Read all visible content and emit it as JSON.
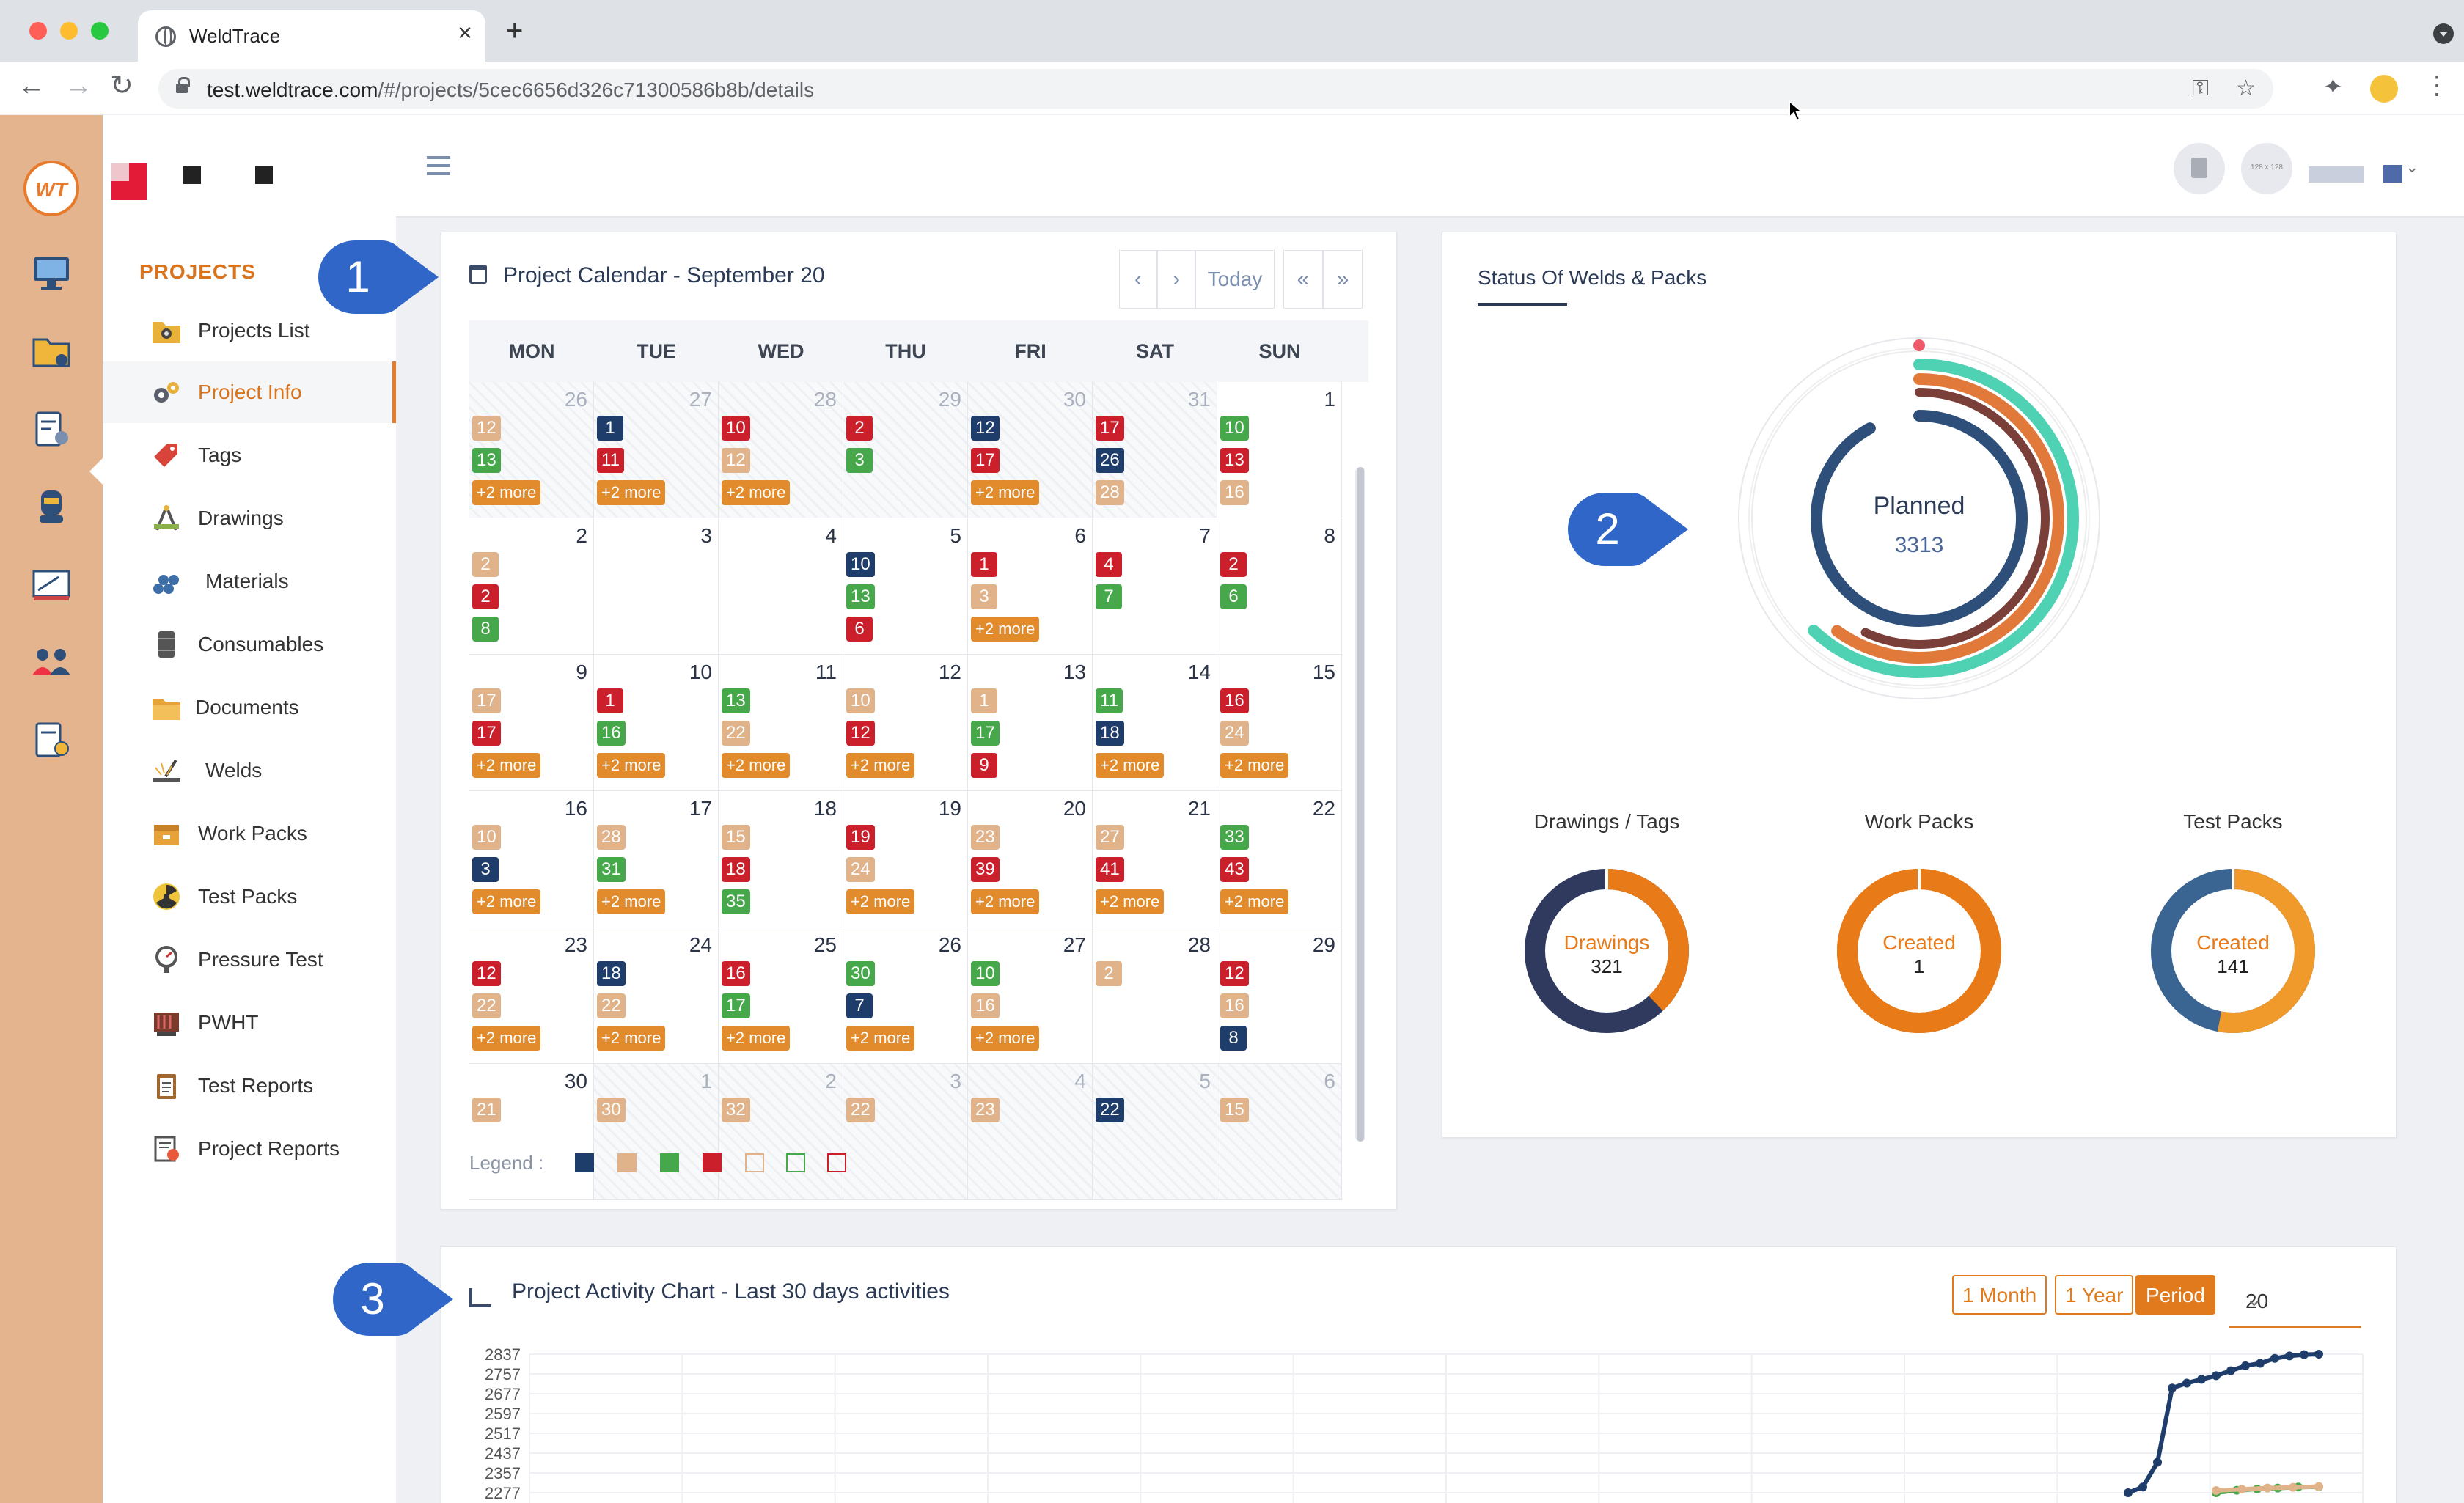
{
  "browser": {
    "tab_title": "WeldTrace",
    "url_host": "test.weldtrace.com",
    "url_path": "/#/projects/5cec6656d326c71300586b8b/details"
  },
  "app": {
    "logo_text": "WT",
    "avatar_placeholder": "128 x 128"
  },
  "sidebar": {
    "heading": "PROJECTS",
    "items": [
      {
        "label": "Projects List",
        "icon": "folder-camera-icon"
      },
      {
        "label": "Project Info",
        "icon": "gears-icon",
        "active": true
      },
      {
        "label": "Tags",
        "icon": "tag-icon"
      },
      {
        "label": "Drawings",
        "icon": "compass-icon"
      },
      {
        "label": "Materials",
        "icon": "pipes-icon"
      },
      {
        "label": "Consumables",
        "icon": "barrel-icon"
      },
      {
        "label": "Documents",
        "icon": "folder-icon"
      },
      {
        "label": "Welds",
        "icon": "welding-icon"
      },
      {
        "label": "Work Packs",
        "icon": "box-icon"
      },
      {
        "label": "Test Packs",
        "icon": "radiation-icon"
      },
      {
        "label": "Pressure Test",
        "icon": "gauge-icon"
      },
      {
        "label": "PWHT",
        "icon": "heater-icon"
      },
      {
        "label": "Test Reports",
        "icon": "clipboard-icon"
      },
      {
        "label": "Project Reports",
        "icon": "report-icon"
      }
    ]
  },
  "calendar": {
    "title": "Project Calendar - September 20",
    "prev": "‹",
    "next": "›",
    "today": "Today",
    "prev_year": "«",
    "next_year": "»",
    "days": [
      "MON",
      "TUE",
      "WED",
      "THU",
      "FRI",
      "SAT",
      "SUN"
    ],
    "more_label": "+2 more",
    "legend_label": "Legend :",
    "colors": {
      "navy": "#1f3d6b",
      "tan": "#e0b38a",
      "green": "#46a84a",
      "red": "#cc1f2c"
    },
    "weeks": [
      [
        {
          "n": "26",
          "o": 1,
          "e": [
            [
              "12",
              "tan"
            ],
            [
              "13",
              "green"
            ]
          ],
          "m": 1
        },
        {
          "n": "27",
          "o": 1,
          "e": [
            [
              "1",
              "navy"
            ],
            [
              "11",
              "red"
            ]
          ],
          "m": 1
        },
        {
          "n": "28",
          "o": 1,
          "e": [
            [
              "10",
              "red"
            ],
            [
              "12",
              "tan"
            ]
          ],
          "m": 1
        },
        {
          "n": "29",
          "o": 1,
          "e": [
            [
              "2",
              "red"
            ],
            [
              "3",
              "green"
            ]
          ],
          "m": 0
        },
        {
          "n": "30",
          "o": 1,
          "e": [
            [
              "12",
              "navy"
            ],
            [
              "17",
              "red"
            ]
          ],
          "m": 1
        },
        {
          "n": "31",
          "o": 1,
          "e": [
            [
              "17",
              "red"
            ],
            [
              "26",
              "navy"
            ],
            [
              "28",
              "tan"
            ]
          ],
          "m": 0
        },
        {
          "n": "1",
          "o": 0,
          "e": [
            [
              "10",
              "green"
            ],
            [
              "13",
              "red"
            ],
            [
              "16",
              "tan"
            ]
          ],
          "m": 0
        }
      ],
      [
        {
          "n": "2",
          "o": 0,
          "e": [
            [
              "2",
              "tan"
            ],
            [
              "2",
              "red"
            ],
            [
              "8",
              "green"
            ]
          ],
          "m": 0
        },
        {
          "n": "3",
          "o": 0,
          "e": [],
          "m": 0
        },
        {
          "n": "4",
          "o": 0,
          "e": [],
          "m": 0
        },
        {
          "n": "5",
          "o": 0,
          "e": [
            [
              "10",
              "navy"
            ],
            [
              "13",
              "green"
            ],
            [
              "6",
              "red"
            ]
          ],
          "m": 0
        },
        {
          "n": "6",
          "o": 0,
          "e": [
            [
              "1",
              "red"
            ],
            [
              "3",
              "tan"
            ]
          ],
          "m": 1
        },
        {
          "n": "7",
          "o": 0,
          "e": [
            [
              "4",
              "red"
            ],
            [
              "7",
              "green"
            ]
          ],
          "m": 0
        },
        {
          "n": "8",
          "o": 0,
          "e": [
            [
              "2",
              "red"
            ],
            [
              "6",
              "green"
            ]
          ],
          "m": 0
        }
      ],
      [
        {
          "n": "9",
          "o": 0,
          "e": [
            [
              "17",
              "tan"
            ],
            [
              "17",
              "red"
            ]
          ],
          "m": 1
        },
        {
          "n": "10",
          "o": 0,
          "e": [
            [
              "1",
              "red"
            ],
            [
              "16",
              "green"
            ]
          ],
          "m": 1
        },
        {
          "n": "11",
          "o": 0,
          "e": [
            [
              "13",
              "green"
            ],
            [
              "22",
              "tan"
            ]
          ],
          "m": 1
        },
        {
          "n": "12",
          "o": 0,
          "e": [
            [
              "10",
              "tan"
            ],
            [
              "12",
              "red"
            ]
          ],
          "m": 1
        },
        {
          "n": "13",
          "o": 0,
          "e": [
            [
              "1",
              "tan"
            ],
            [
              "17",
              "green"
            ],
            [
              "9",
              "red"
            ]
          ],
          "m": 0
        },
        {
          "n": "14",
          "o": 0,
          "e": [
            [
              "11",
              "green"
            ],
            [
              "18",
              "navy"
            ]
          ],
          "m": 1
        },
        {
          "n": "15",
          "o": 0,
          "e": [
            [
              "16",
              "red"
            ],
            [
              "24",
              "tan"
            ]
          ],
          "m": 1
        }
      ],
      [
        {
          "n": "16",
          "o": 0,
          "e": [
            [
              "10",
              "tan"
            ],
            [
              "3",
              "navy"
            ]
          ],
          "m": 1
        },
        {
          "n": "17",
          "o": 0,
          "e": [
            [
              "28",
              "tan"
            ],
            [
              "31",
              "green"
            ]
          ],
          "m": 1
        },
        {
          "n": "18",
          "o": 0,
          "e": [
            [
              "15",
              "tan"
            ],
            [
              "18",
              "red"
            ],
            [
              "35",
              "green"
            ]
          ],
          "m": 0
        },
        {
          "n": "19",
          "o": 0,
          "e": [
            [
              "19",
              "red"
            ],
            [
              "24",
              "tan"
            ]
          ],
          "m": 1
        },
        {
          "n": "20",
          "o": 0,
          "e": [
            [
              "23",
              "tan"
            ],
            [
              "39",
              "red"
            ]
          ],
          "m": 1
        },
        {
          "n": "21",
          "o": 0,
          "e": [
            [
              "27",
              "tan"
            ],
            [
              "41",
              "red"
            ]
          ],
          "m": 1
        },
        {
          "n": "22",
          "o": 0,
          "e": [
            [
              "33",
              "green"
            ],
            [
              "43",
              "red"
            ]
          ],
          "m": 1
        }
      ],
      [
        {
          "n": "23",
          "o": 0,
          "e": [
            [
              "12",
              "red"
            ],
            [
              "22",
              "tan"
            ]
          ],
          "m": 1
        },
        {
          "n": "24",
          "o": 0,
          "e": [
            [
              "18",
              "navy"
            ],
            [
              "22",
              "tan"
            ]
          ],
          "m": 1
        },
        {
          "n": "25",
          "o": 0,
          "e": [
            [
              "16",
              "red"
            ],
            [
              "17",
              "green"
            ]
          ],
          "m": 1
        },
        {
          "n": "26",
          "o": 0,
          "e": [
            [
              "30",
              "green"
            ],
            [
              "7",
              "navy"
            ]
          ],
          "m": 1
        },
        {
          "n": "27",
          "o": 0,
          "e": [
            [
              "10",
              "green"
            ],
            [
              "16",
              "tan"
            ]
          ],
          "m": 1
        },
        {
          "n": "28",
          "o": 0,
          "e": [
            [
              "2",
              "tan"
            ]
          ],
          "m": 0
        },
        {
          "n": "29",
          "o": 0,
          "e": [
            [
              "12",
              "red"
            ],
            [
              "16",
              "tan"
            ],
            [
              "8",
              "navy"
            ]
          ],
          "m": 0
        }
      ],
      [
        {
          "n": "30",
          "o": 0,
          "e": [
            [
              "21",
              "tan"
            ]
          ],
          "m": 0
        },
        {
          "n": "1",
          "o": 1,
          "e": [
            [
              "30",
              "tan"
            ]
          ],
          "m": 0
        },
        {
          "n": "2",
          "o": 1,
          "e": [
            [
              "32",
              "tan"
            ]
          ],
          "m": 0
        },
        {
          "n": "3",
          "o": 1,
          "e": [
            [
              "22",
              "tan"
            ]
          ],
          "m": 0
        },
        {
          "n": "4",
          "o": 1,
          "e": [
            [
              "23",
              "tan"
            ]
          ],
          "m": 0
        },
        {
          "n": "5",
          "o": 1,
          "e": [
            [
              "22",
              "navy"
            ]
          ],
          "m": 0
        },
        {
          "n": "6",
          "o": 1,
          "e": [
            [
              "15",
              "tan"
            ]
          ],
          "m": 0
        }
      ]
    ]
  },
  "status": {
    "title": "Status Of Welds & Packs",
    "center_label": "Planned",
    "center_value": "3313",
    "rings": [
      {
        "color": "#4fd1b4",
        "fraction": 0.62
      },
      {
        "color": "#e0793a",
        "fraction": 0.6
      },
      {
        "color": "#7b3f3a",
        "fraction": 0.57
      },
      {
        "color": "#2d4f7a",
        "fraction": 0.92
      }
    ],
    "donuts": [
      {
        "heading": "Drawings / Tags",
        "label": "Drawings",
        "value": "321",
        "main": "#2f3a5e",
        "accent": "#e87a17",
        "accent_fraction": 0.38
      },
      {
        "heading": "Work Packs",
        "label": "Created",
        "value": "1",
        "main": "#e87a17",
        "accent": "#e87a17",
        "accent_fraction": 1.0
      },
      {
        "heading": "Test Packs",
        "label": "Created",
        "value": "141",
        "main": "#3a6491",
        "accent": "#f09a2c",
        "accent_fraction": 0.53
      }
    ]
  },
  "activity": {
    "title": "Project Activity Chart - Last 30 days activities",
    "buttons": [
      "1 Month",
      "1 Year",
      "Period"
    ],
    "active_button": "Period",
    "period_value": "20",
    "chevron": "⌄"
  },
  "chart_data": {
    "type": "line",
    "title": "Project Activity Chart - Last 30 days activities",
    "yticks": [
      "2837",
      "2757",
      "2677",
      "2597",
      "2517",
      "2437",
      "2357",
      "2277"
    ],
    "ylim": [
      2277,
      2837
    ],
    "series": [
      {
        "color": "#1f3d6b",
        "values": [
          2277,
          2300,
          2400,
          2700,
          2720,
          2735,
          2750,
          2770,
          2790,
          2800,
          2820,
          2830,
          2835,
          2837
        ]
      },
      {
        "color": "#46a84a",
        "values": [
          2277,
          2287,
          2292,
          2296,
          2300,
          2301
        ]
      },
      {
        "color": "#e0b38a",
        "values": [
          2286,
          2291,
          2296,
          2299,
          2302
        ]
      }
    ]
  },
  "callouts": [
    "1",
    "2",
    "3"
  ]
}
